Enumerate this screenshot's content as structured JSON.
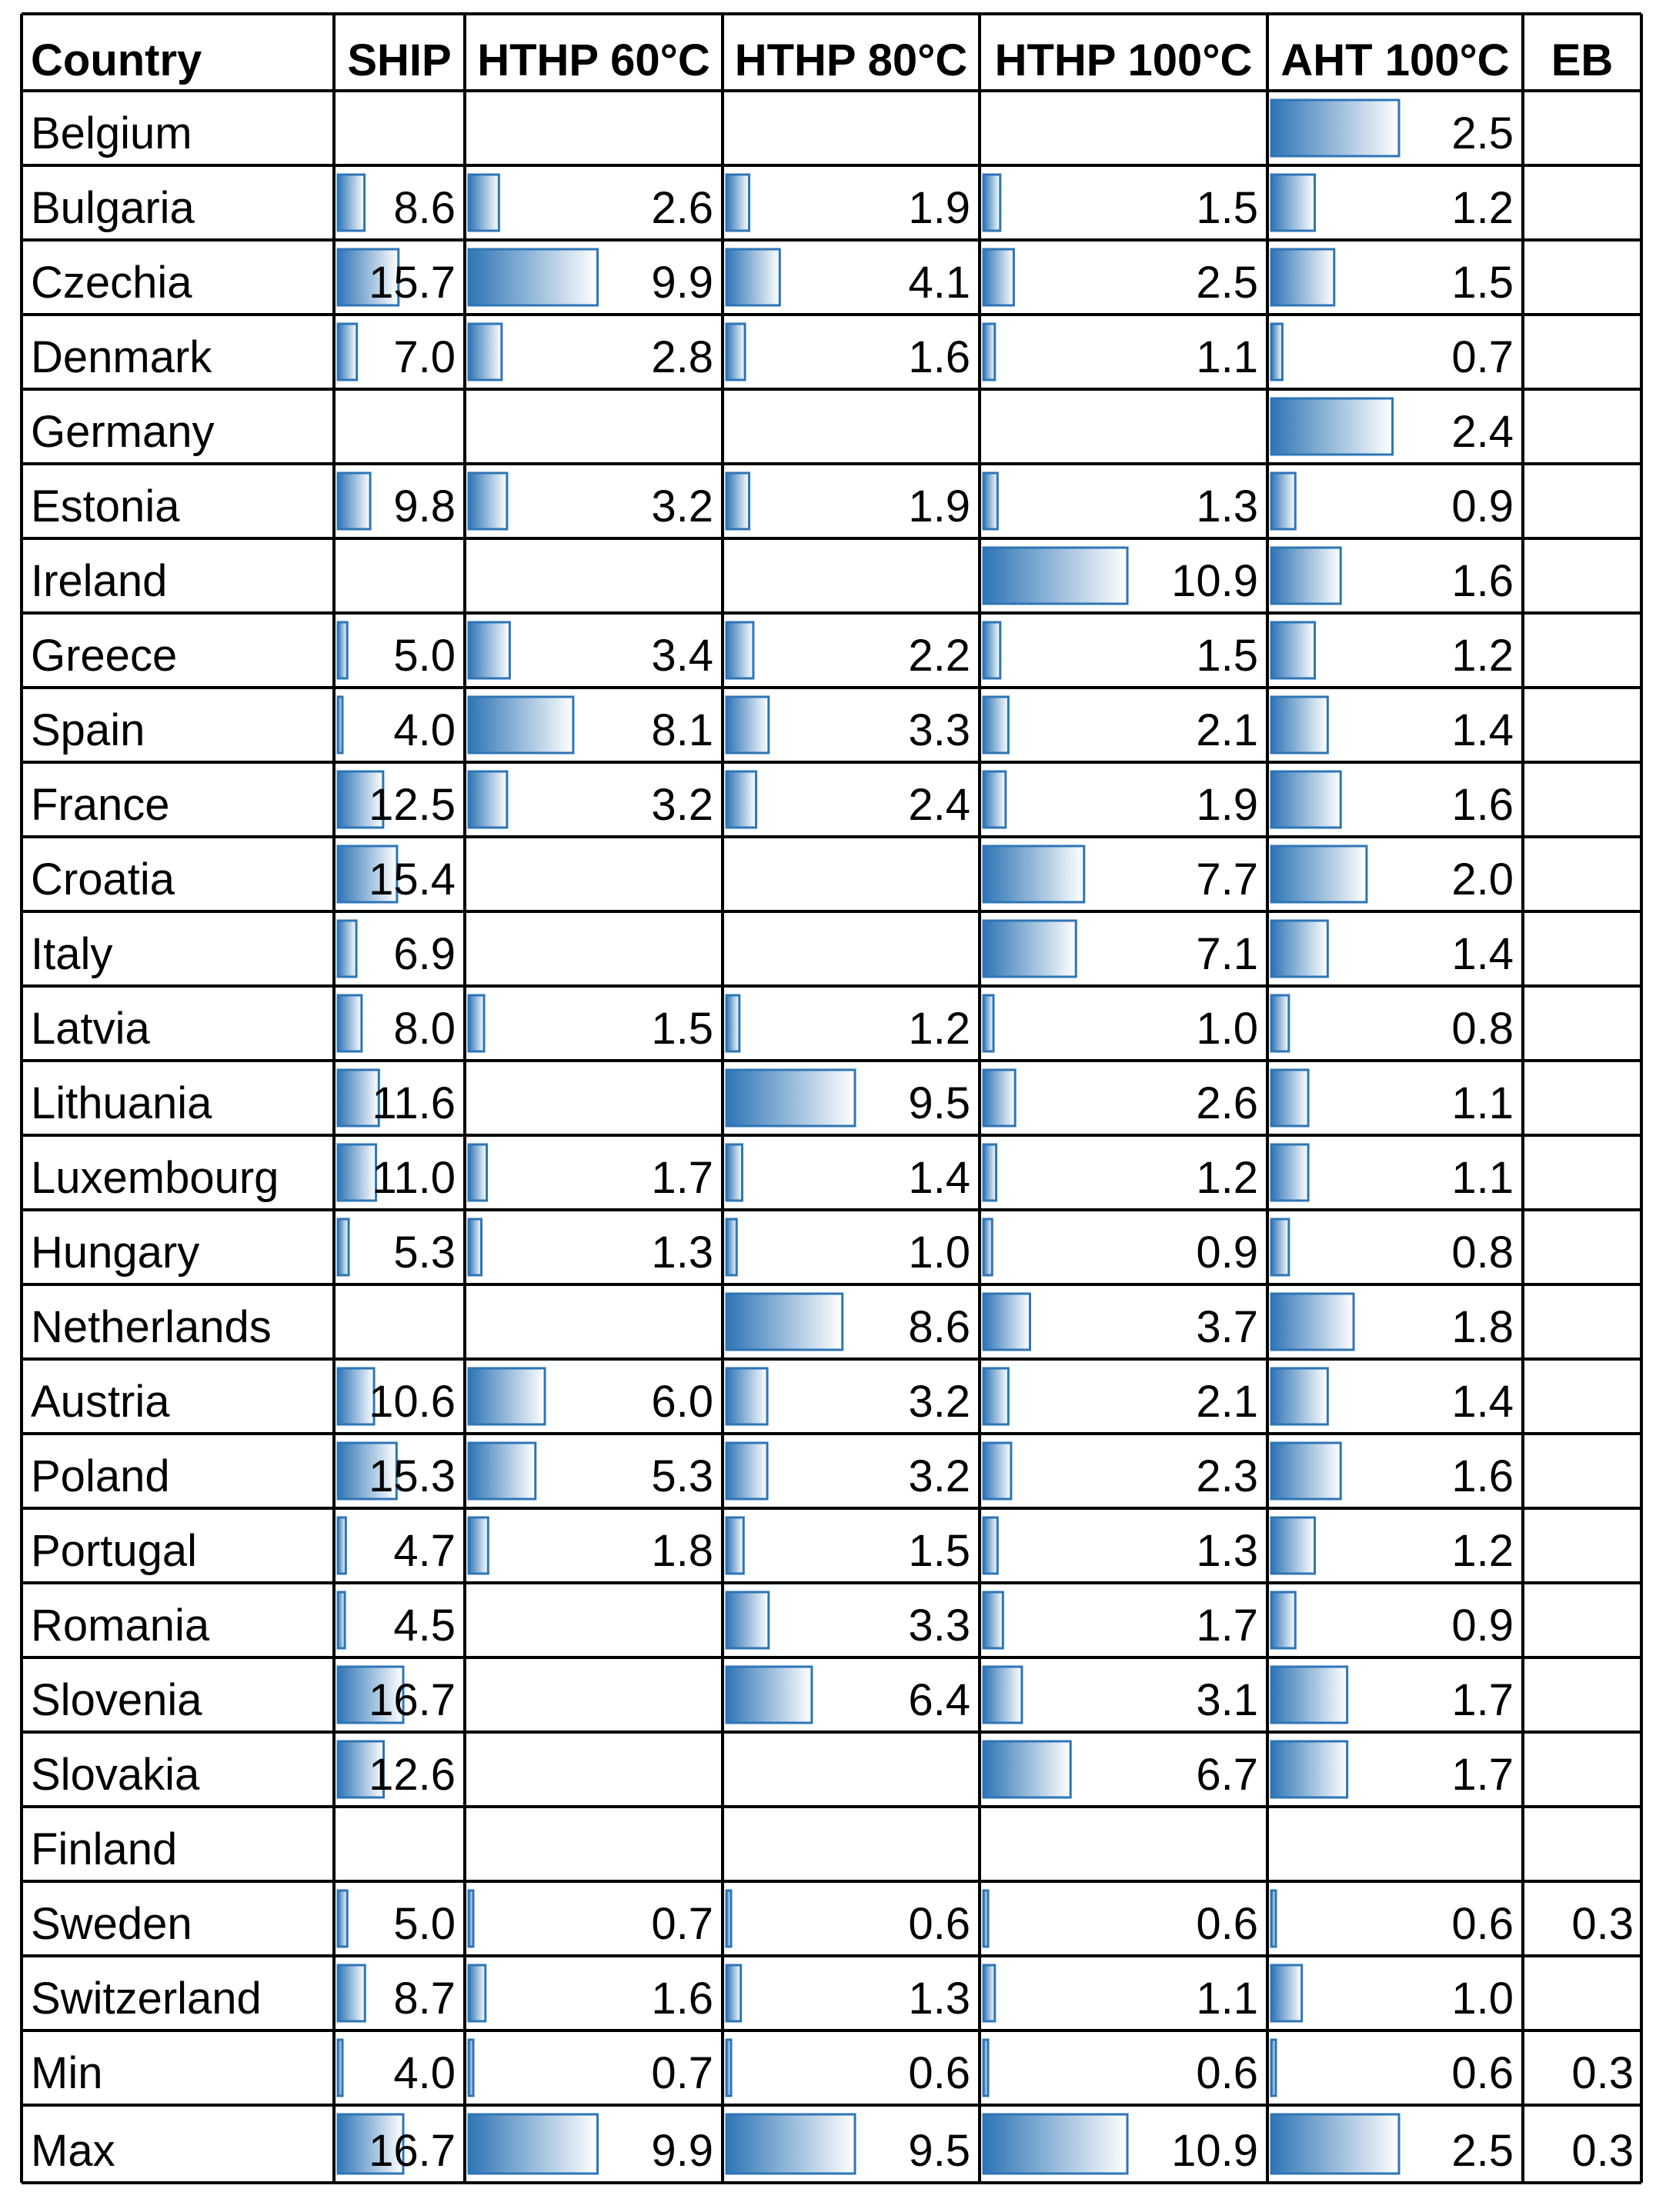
{
  "chart_data": {
    "type": "table",
    "columns": [
      "Country",
      "SHIP",
      "HTHP 60°C",
      "HTHP 80°C",
      "HTHP 100°C",
      "AHT 100°C",
      "EB"
    ],
    "rows": [
      {
        "country": "Belgium",
        "values": [
          "",
          "",
          "",
          "",
          "2.5",
          ""
        ]
      },
      {
        "country": "Bulgaria",
        "values": [
          "8.6",
          "2.6",
          "1.9",
          "1.5",
          "1.2",
          ""
        ]
      },
      {
        "country": "Czechia",
        "values": [
          "15.7",
          "9.9",
          "4.1",
          "2.5",
          "1.5",
          ""
        ]
      },
      {
        "country": "Denmark",
        "values": [
          "7.0",
          "2.8",
          "1.6",
          "1.1",
          "0.7",
          ""
        ]
      },
      {
        "country": "Germany",
        "values": [
          "",
          "",
          "",
          "",
          "2.4",
          ""
        ]
      },
      {
        "country": "Estonia",
        "values": [
          "9.8",
          "3.2",
          "1.9",
          "1.3",
          "0.9",
          ""
        ]
      },
      {
        "country": "Ireland",
        "values": [
          "",
          "",
          "",
          "10.9",
          "1.6",
          ""
        ]
      },
      {
        "country": "Greece",
        "values": [
          "5.0",
          "3.4",
          "2.2",
          "1.5",
          "1.2",
          ""
        ]
      },
      {
        "country": "Spain",
        "values": [
          "4.0",
          "8.1",
          "3.3",
          "2.1",
          "1.4",
          ""
        ]
      },
      {
        "country": "France",
        "values": [
          "12.5",
          "3.2",
          "2.4",
          "1.9",
          "1.6",
          ""
        ]
      },
      {
        "country": "Croatia",
        "values": [
          "15.4",
          "",
          "",
          "7.7",
          "2.0",
          ""
        ]
      },
      {
        "country": "Italy",
        "values": [
          "6.9",
          "",
          "",
          "7.1",
          "1.4",
          ""
        ]
      },
      {
        "country": "Latvia",
        "values": [
          "8.0",
          "1.5",
          "1.2",
          "1.0",
          "0.8",
          ""
        ]
      },
      {
        "country": "Lithuania",
        "values": [
          "11.6",
          "",
          "9.5",
          "2.6",
          "1.1",
          ""
        ]
      },
      {
        "country": "Luxembourg",
        "values": [
          "11.0",
          "1.7",
          "1.4",
          "1.2",
          "1.1",
          ""
        ]
      },
      {
        "country": "Hungary",
        "values": [
          "5.3",
          "1.3",
          "1.0",
          "0.9",
          "0.8",
          ""
        ]
      },
      {
        "country": "Netherlands",
        "values": [
          "",
          "",
          "8.6",
          "3.7",
          "1.8",
          ""
        ]
      },
      {
        "country": "Austria",
        "values": [
          "10.6",
          "6.0",
          "3.2",
          "2.1",
          "1.4",
          ""
        ]
      },
      {
        "country": "Poland",
        "values": [
          "15.3",
          "5.3",
          "3.2",
          "2.3",
          "1.6",
          ""
        ]
      },
      {
        "country": "Portugal",
        "values": [
          "4.7",
          "1.8",
          "1.5",
          "1.3",
          "1.2",
          ""
        ]
      },
      {
        "country": "Romania",
        "values": [
          "4.5",
          "",
          "3.3",
          "1.7",
          "0.9",
          ""
        ]
      },
      {
        "country": "Slovenia",
        "values": [
          "16.7",
          "",
          "6.4",
          "3.1",
          "1.7",
          ""
        ]
      },
      {
        "country": "Slovakia",
        "values": [
          "12.6",
          "",
          "",
          "6.7",
          "1.7",
          ""
        ]
      },
      {
        "country": "Finland",
        "values": [
          "",
          "",
          "",
          "",
          "",
          ""
        ]
      },
      {
        "country": "Sweden",
        "values": [
          "5.0",
          "0.7",
          "0.6",
          "0.6",
          "0.6",
          "0.3"
        ]
      },
      {
        "country": "Switzerland",
        "values": [
          "8.7",
          "1.6",
          "1.3",
          "1.1",
          "1.0",
          ""
        ]
      },
      {
        "country": "Min",
        "values": [
          "4.0",
          "0.7",
          "0.6",
          "0.6",
          "0.6",
          "0.3"
        ]
      },
      {
        "country": "Max",
        "values": [
          "16.7",
          "9.9",
          "9.5",
          "10.9",
          "2.5",
          "0.3"
        ]
      }
    ],
    "data_bar_columns": [
      true,
      true,
      true,
      true,
      true,
      false
    ],
    "data_bar_color": "#2e75b6",
    "grid": true
  }
}
